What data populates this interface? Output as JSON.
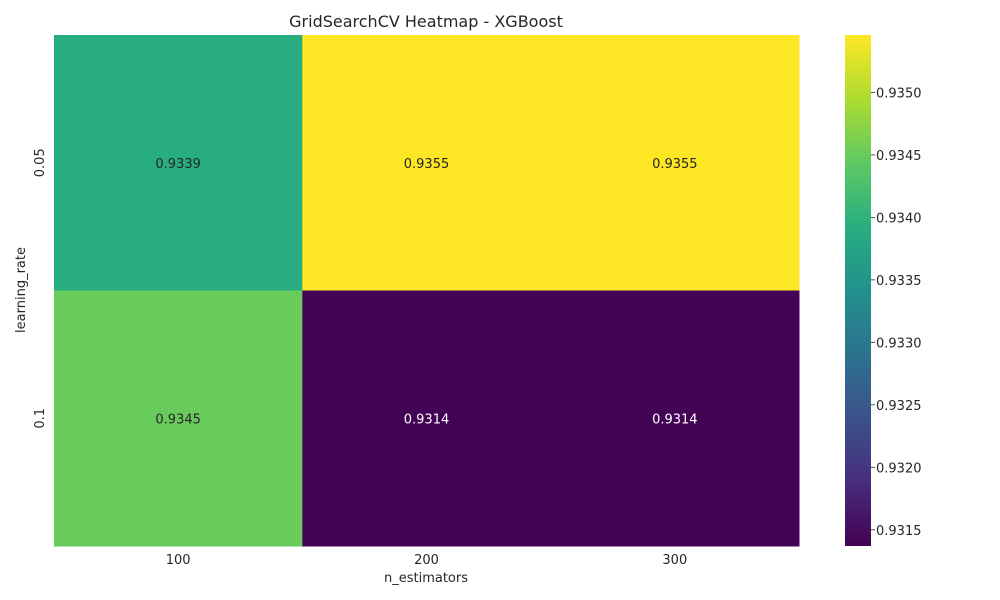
{
  "chart_data": {
    "type": "heatmap",
    "title": "GridSearchCV Heatmap - XGBoost",
    "xlabel": "n_estimators",
    "ylabel": "learning_rate",
    "x_categories": [
      "100",
      "200",
      "300"
    ],
    "y_categories": [
      "0.05",
      "0.1"
    ],
    "values": [
      [
        0.9339,
        0.9355,
        0.9355
      ],
      [
        0.9345,
        0.9314,
        0.9314
      ]
    ],
    "value_labels": [
      [
        "0.9339",
        "0.9355",
        "0.9355"
      ],
      [
        "0.9345",
        "0.9314",
        "0.9314"
      ]
    ],
    "colormap": "viridis",
    "color_range": [
      0.93137,
      0.93546
    ],
    "colorbar_ticks": [
      "0.9315",
      "0.9320",
      "0.9325",
      "0.9330",
      "0.9335",
      "0.9340",
      "0.9345",
      "0.9350"
    ],
    "grid": false
  }
}
